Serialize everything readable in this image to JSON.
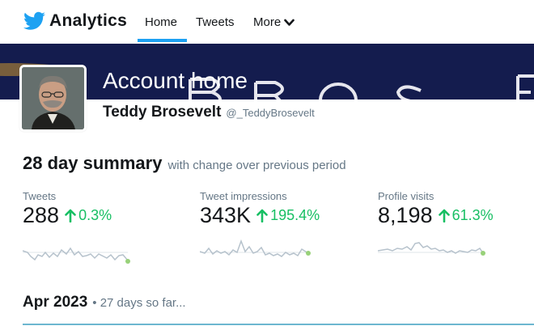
{
  "brand": {
    "name": "Analytics",
    "logo_icon": "twitter-bird-icon",
    "color": "#1da1f2"
  },
  "nav": {
    "home": "Home",
    "tweets": "Tweets",
    "more": "More",
    "active": "Home"
  },
  "header": {
    "title": "Account home",
    "display_name": "Teddy Brosevelt",
    "handle": "@_TeddyBrosevelt",
    "banner_letters": "BROSE"
  },
  "summary": {
    "title": "28 day summary",
    "subtitle": "with change over previous period",
    "metrics": [
      {
        "label": "Tweets",
        "value": "288",
        "change": "0.3%",
        "trend": "up"
      },
      {
        "label": "Tweet impressions",
        "value": "343K",
        "change": "195.4%",
        "trend": "up"
      },
      {
        "label": "Profile visits",
        "value": "8,198",
        "change": "61.3%",
        "trend": "up"
      }
    ]
  },
  "month": {
    "title": "Apr 2023",
    "subtitle": "• 27 days so far..."
  },
  "colors": {
    "accent": "#1da1f2",
    "positive": "#17bf63",
    "banner": "#141c4e",
    "spark_line": "#b6c2cc",
    "spark_end": "#98d179"
  }
}
